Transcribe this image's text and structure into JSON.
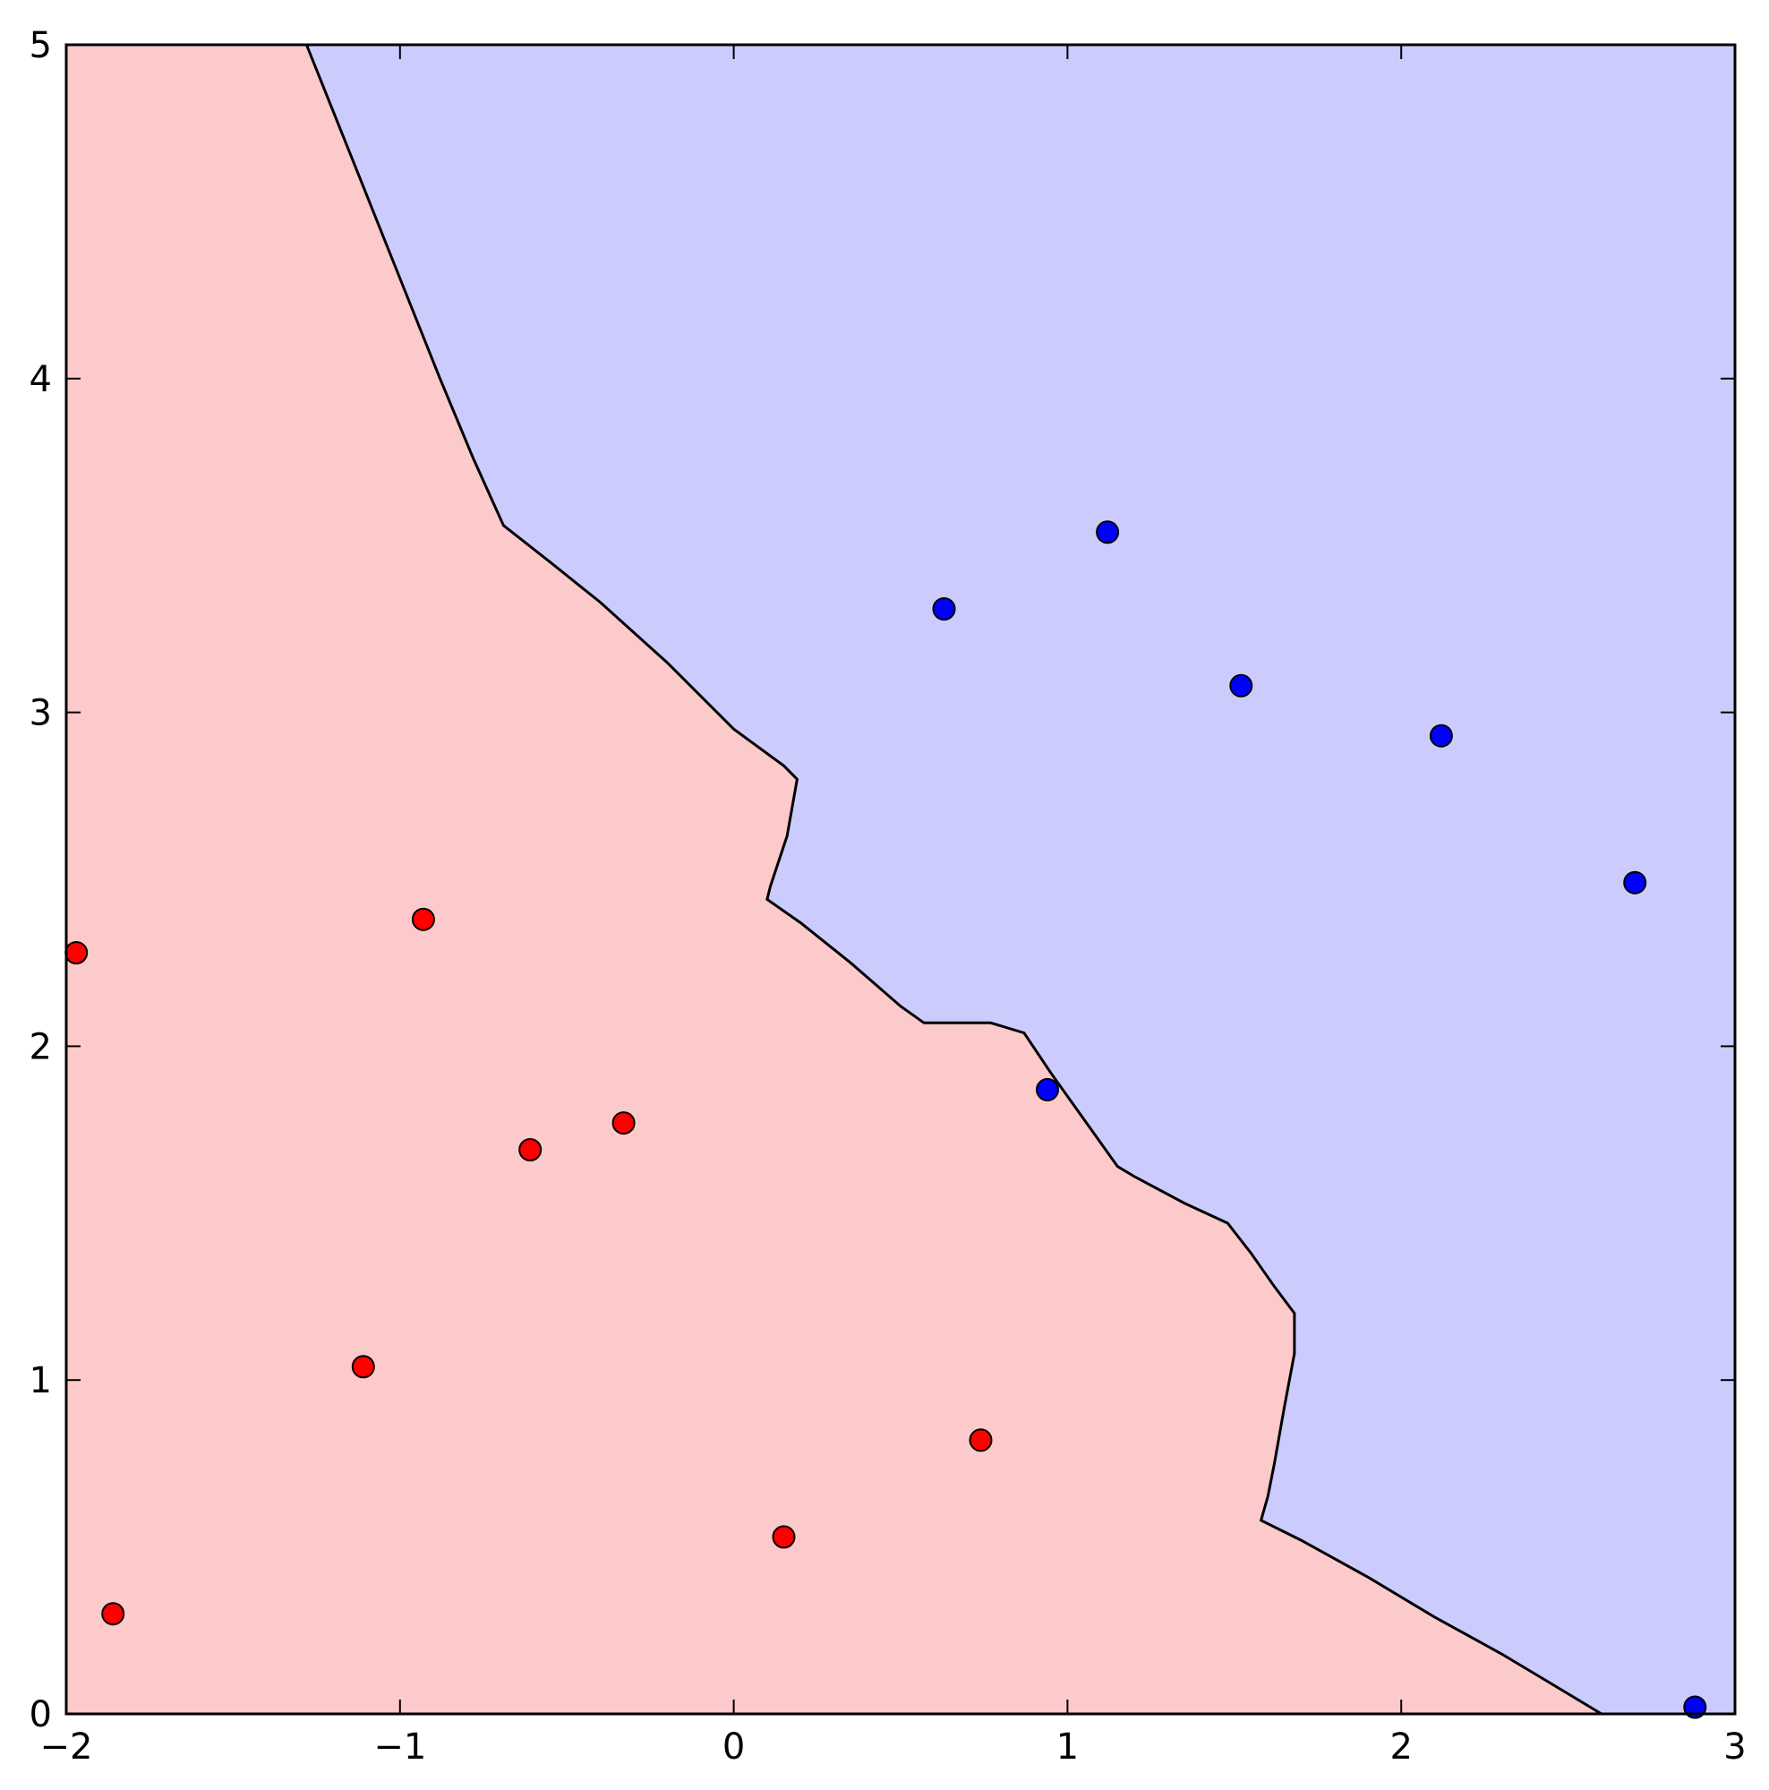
{
  "chart_data": {
    "type": "scatter",
    "title": "",
    "xlabel": "",
    "ylabel": "",
    "xlim": [
      -2,
      3
    ],
    "ylim": [
      0,
      5
    ],
    "grid": false,
    "x_ticks": [
      {
        "value": -2,
        "label": "−2"
      },
      {
        "value": -1,
        "label": "−1"
      },
      {
        "value": 0,
        "label": "0"
      },
      {
        "value": 1,
        "label": "1"
      },
      {
        "value": 2,
        "label": "2"
      },
      {
        "value": 3,
        "label": "3"
      }
    ],
    "y_ticks": [
      {
        "value": 0,
        "label": "0"
      },
      {
        "value": 1,
        "label": "1"
      },
      {
        "value": 2,
        "label": "2"
      },
      {
        "value": 3,
        "label": "3"
      },
      {
        "value": 4,
        "label": "4"
      },
      {
        "value": 5,
        "label": "5"
      }
    ],
    "regions": {
      "red_color": "#fccaca",
      "blue_color": "#cbcbfd",
      "boundary_color": "#000000"
    },
    "decision_boundary": [
      [
        -1.28,
        5.0
      ],
      [
        -1.22,
        4.85
      ],
      [
        -1.12,
        4.6
      ],
      [
        -1.0,
        4.3
      ],
      [
        -0.88,
        4.0
      ],
      [
        -0.78,
        3.76
      ],
      [
        -0.69,
        3.56
      ],
      [
        -0.55,
        3.45
      ],
      [
        -0.4,
        3.33
      ],
      [
        -0.2,
        3.15
      ],
      [
        0.0,
        2.95
      ],
      [
        0.15,
        2.84
      ],
      [
        0.19,
        2.8
      ],
      [
        0.16,
        2.63
      ],
      [
        0.11,
        2.48
      ],
      [
        0.1,
        2.44
      ],
      [
        0.2,
        2.37
      ],
      [
        0.35,
        2.25
      ],
      [
        0.5,
        2.12
      ],
      [
        0.57,
        2.07
      ],
      [
        0.77,
        2.07
      ],
      [
        0.87,
        2.04
      ],
      [
        0.95,
        1.92
      ],
      [
        1.05,
        1.78
      ],
      [
        1.15,
        1.64
      ],
      [
        1.2,
        1.61
      ],
      [
        1.35,
        1.53
      ],
      [
        1.48,
        1.47
      ],
      [
        1.55,
        1.38
      ],
      [
        1.62,
        1.28
      ],
      [
        1.68,
        1.2
      ],
      [
        1.68,
        1.08
      ],
      [
        1.65,
        0.92
      ],
      [
        1.62,
        0.75
      ],
      [
        1.6,
        0.65
      ],
      [
        1.58,
        0.58
      ],
      [
        1.7,
        0.52
      ],
      [
        1.9,
        0.41
      ],
      [
        2.1,
        0.29
      ],
      [
        2.3,
        0.18
      ],
      [
        2.45,
        0.09
      ],
      [
        2.6,
        0.0
      ]
    ],
    "series": [
      {
        "color": "#ff0000",
        "points": [
          [
            -1.97,
            2.28
          ],
          [
            -0.93,
            2.38
          ],
          [
            -0.61,
            1.69
          ],
          [
            -0.33,
            1.77
          ],
          [
            -1.11,
            1.04
          ],
          [
            -1.86,
            0.3
          ],
          [
            0.15,
            0.53
          ],
          [
            0.74,
            0.82
          ]
        ]
      },
      {
        "color": "#0000ff",
        "points": [
          [
            0.63,
            3.31
          ],
          [
            1.12,
            3.54
          ],
          [
            1.52,
            3.08
          ],
          [
            2.12,
            2.93
          ],
          [
            2.7,
            2.49
          ],
          [
            0.94,
            1.87
          ],
          [
            2.88,
            0.02
          ]
        ]
      }
    ]
  }
}
